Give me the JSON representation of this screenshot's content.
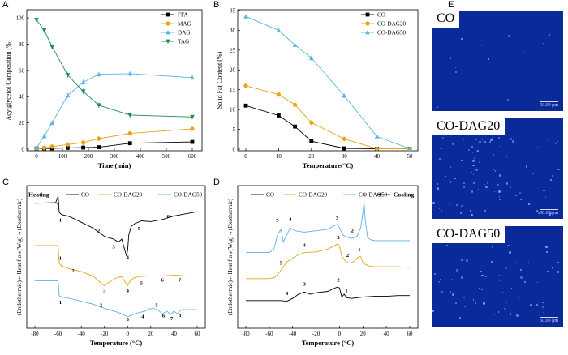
{
  "panel_letters": [
    "A",
    "B",
    "C",
    "D",
    "E"
  ],
  "colors": {
    "co": "#000000",
    "dag20": "#e8a317",
    "dag50": "#5ab4e0",
    "tag": "#1e8b5a",
    "micro_bg": "#0a2a9a"
  },
  "chart_data": [
    {
      "id": "A",
      "type": "line",
      "xlabel": "Time (min)",
      "ylabel": "Acylglycerol Composition (%)",
      "xlim": [
        0,
        600
      ],
      "ylim": [
        0,
        105
      ],
      "xticks": [
        0,
        100,
        200,
        300,
        400,
        500,
        600
      ],
      "yticks": [
        0,
        20,
        40,
        60,
        80,
        100
      ],
      "legend": "right",
      "series": [
        {
          "name": "FFA",
          "color": "#000000",
          "marker": "square",
          "x": [
            0,
            30,
            60,
            120,
            180,
            240,
            360,
            600
          ],
          "values": [
            0.5,
            0.5,
            0.6,
            1.0,
            1.2,
            1.5,
            4.5,
            5.5
          ]
        },
        {
          "name": "MAG",
          "color": "#e8a317",
          "marker": "circle",
          "x": [
            0,
            30,
            60,
            120,
            180,
            240,
            360,
            600
          ],
          "values": [
            0.5,
            1.0,
            2.0,
            3.5,
            5.0,
            8.0,
            12.0,
            15.5
          ]
        },
        {
          "name": "DAG",
          "color": "#5ab4e0",
          "marker": "triangle",
          "x": [
            0,
            30,
            60,
            120,
            180,
            240,
            360,
            600
          ],
          "values": [
            1.0,
            10.0,
            20.0,
            41.0,
            51.0,
            57.0,
            57.5,
            54.5
          ]
        },
        {
          "name": "TAG",
          "color": "#1e8b5a",
          "marker": "triangle-down",
          "x": [
            0,
            30,
            60,
            120,
            180,
            240,
            360,
            600
          ],
          "values": [
            98.5,
            90.5,
            78.0,
            56.5,
            44.0,
            33.5,
            26.0,
            24.5
          ]
        }
      ]
    },
    {
      "id": "B",
      "type": "line",
      "xlabel": "Temperature(°C)",
      "ylabel": "Solid Fat Content (%)",
      "xlim": [
        0,
        50
      ],
      "ylim": [
        0,
        35
      ],
      "xticks": [
        0,
        10,
        20,
        30,
        40,
        50
      ],
      "yticks": [
        0,
        5,
        10,
        15,
        20,
        25,
        30,
        35
      ],
      "legend": "top-right",
      "series": [
        {
          "name": "CO",
          "color": "#000000",
          "marker": "square",
          "x": [
            0,
            10,
            15,
            20,
            30,
            40,
            50
          ],
          "values": [
            11.0,
            8.5,
            5.7,
            2.0,
            0.2,
            0.1,
            0.1
          ]
        },
        {
          "name": "CO-DAG20",
          "color": "#e8a317",
          "marker": "circle",
          "x": [
            0,
            10,
            15,
            20,
            30,
            40,
            50
          ],
          "values": [
            16.0,
            13.8,
            11.2,
            6.7,
            2.6,
            0.1,
            0.1
          ]
        },
        {
          "name": "CO-DAG50",
          "color": "#5ab4e0",
          "marker": "triangle",
          "x": [
            0,
            10,
            15,
            20,
            30,
            40,
            50
          ],
          "values": [
            33.5,
            30.0,
            26.3,
            23.0,
            13.5,
            3.2,
            0.1
          ]
        }
      ]
    },
    {
      "id": "C",
      "type": "line",
      "title": "Heating",
      "xlabel": "Temperature (°C)",
      "ylabel": "(Endothermic)←Heat flow(W/g)→(Exothermic)",
      "xlim": [
        -80,
        60
      ],
      "ylim": [
        0,
        2
      ],
      "xticks": [
        -80,
        -60,
        -40,
        -20,
        0,
        20,
        40,
        60
      ],
      "yticks": [],
      "legend": "top",
      "series": [
        {
          "name": "CO",
          "color": "#000000",
          "x": [
            -80,
            -62,
            -60,
            -59,
            -57,
            -50,
            -40,
            -30,
            -20,
            -12,
            -8,
            -5,
            -3,
            -1,
            0,
            1,
            3,
            6,
            12,
            20,
            30,
            40,
            50,
            60
          ],
          "values": [
            1.75,
            1.76,
            1.85,
            1.62,
            1.59,
            1.56,
            1.48,
            1.4,
            1.28,
            1.24,
            1.2,
            1.24,
            1.12,
            1.0,
            1.08,
            1.3,
            1.42,
            1.46,
            1.5,
            1.49,
            1.52,
            1.57,
            1.6,
            1.63
          ]
        },
        {
          "name": "CO-DAG20",
          "color": "#e8a317",
          "x": [
            -80,
            -62,
            -60,
            -59,
            -57,
            -50,
            -40,
            -30,
            -23,
            -20,
            -17,
            -10,
            -5,
            -2,
            0,
            2,
            5,
            10,
            20,
            30,
            40,
            50,
            60
          ],
          "values": [
            1.15,
            1.15,
            1.15,
            0.9,
            0.86,
            0.82,
            0.78,
            0.72,
            0.62,
            0.58,
            0.62,
            0.69,
            0.71,
            0.63,
            0.58,
            0.64,
            0.69,
            0.71,
            0.72,
            0.72,
            0.73,
            0.72,
            0.72
          ]
        },
        {
          "name": "CO-DAG50",
          "color": "#5ab4e0",
          "x": [
            -80,
            -62,
            -60,
            -59,
            -57,
            -50,
            -40,
            -30,
            -20,
            -10,
            -5,
            0,
            3,
            6,
            10,
            15,
            18,
            22,
            26,
            30,
            34,
            37,
            40,
            43,
            46,
            50,
            60
          ],
          "values": [
            0.65,
            0.65,
            0.65,
            0.44,
            0.42,
            0.4,
            0.36,
            0.32,
            0.26,
            0.21,
            0.18,
            0.14,
            0.16,
            0.18,
            0.2,
            0.22,
            0.25,
            0.26,
            0.24,
            0.18,
            0.22,
            0.17,
            0.22,
            0.18,
            0.24,
            0.24,
            0.24
          ]
        }
      ],
      "annotations": [
        {
          "series": "CO",
          "labels": [
            {
              "x": -58,
              "y": 1.49,
              "text": "1"
            },
            {
              "x": -25,
              "y": 1.34,
              "text": "2"
            },
            {
              "x": -12,
              "y": 1.11,
              "text": "3"
            },
            {
              "x": 0,
              "y": 0.96,
              "text": "4"
            },
            {
              "x": 10,
              "y": 1.37,
              "text": "5"
            },
            {
              "x": 35,
              "y": 1.54,
              "text": "6"
            }
          ]
        },
        {
          "series": "CO-DAG20",
          "labels": [
            {
              "x": -58,
              "y": 0.95,
              "text": "1"
            },
            {
              "x": -47,
              "y": 0.77,
              "text": "2"
            },
            {
              "x": -20,
              "y": 0.49,
              "text": "3"
            },
            {
              "x": 0,
              "y": 0.49,
              "text": "4"
            },
            {
              "x": 12,
              "y": 0.59,
              "text": "5"
            },
            {
              "x": 30,
              "y": 0.64,
              "text": "6"
            },
            {
              "x": 45,
              "y": 0.64,
              "text": "7"
            }
          ]
        },
        {
          "series": "CO-DAG50",
          "labels": [
            {
              "x": -58,
              "y": 0.32,
              "text": "1"
            },
            {
              "x": -23,
              "y": 0.28,
              "text": "2"
            },
            {
              "x": 0,
              "y": 0.08,
              "text": "3"
            },
            {
              "x": 13,
              "y": 0.12,
              "text": "4"
            },
            {
              "x": 25,
              "y": 0.28,
              "text": "5"
            },
            {
              "x": 31,
              "y": 0.13,
              "text": "6"
            },
            {
              "x": 38,
              "y": 0.09,
              "text": "7"
            },
            {
              "x": 45,
              "y": 0.14,
              "text": "8"
            }
          ]
        }
      ]
    },
    {
      "id": "D",
      "type": "line",
      "title": "Cooling",
      "xlabel": "Temperature (°C)",
      "ylabel": "(Endothermic)←Heat flow(W/g)→(Exothermic)",
      "xlim": [
        -80,
        60
      ],
      "ylim": [
        0,
        2
      ],
      "xticks": [
        -80,
        -60,
        -40,
        -20,
        0,
        20,
        40,
        60
      ],
      "yticks": [],
      "legend": "top",
      "series": [
        {
          "name": "CO",
          "color": "#000000",
          "x": [
            -80,
            -60,
            -50,
            -45,
            -40,
            -35,
            -30,
            -25,
            -20,
            -10,
            -5,
            -2,
            0,
            2,
            4,
            6,
            10,
            20,
            30,
            40,
            50,
            60
          ],
          "values": [
            0.37,
            0.37,
            0.37,
            0.36,
            0.4,
            0.46,
            0.49,
            0.46,
            0.48,
            0.5,
            0.54,
            0.56,
            0.55,
            0.42,
            0.46,
            0.41,
            0.4,
            0.42,
            0.43,
            0.43,
            0.44,
            0.44
          ]
        },
        {
          "name": "CO-DAG20",
          "color": "#e8a317",
          "x": [
            -80,
            -60,
            -55,
            -50,
            -45,
            -40,
            -35,
            -30,
            -20,
            -10,
            -5,
            -2,
            0,
            2,
            5,
            8,
            12,
            15,
            18,
            20,
            25,
            30,
            40,
            50,
            60
          ],
          "values": [
            0.68,
            0.68,
            0.7,
            0.8,
            0.92,
            0.97,
            1.02,
            1.05,
            1.06,
            1.1,
            1.14,
            1.17,
            1.14,
            1.0,
            0.93,
            0.9,
            0.92,
            0.97,
            1.0,
            0.9,
            0.86,
            0.85,
            0.85,
            0.85,
            0.84
          ]
        },
        {
          "name": "CO-DAG50",
          "color": "#5ab4e0",
          "x": [
            -80,
            -60,
            -56,
            -53,
            -50,
            -48,
            -45,
            -42,
            -38,
            -30,
            -20,
            -10,
            -5,
            -2,
            0,
            3,
            6,
            10,
            15,
            18,
            20,
            21,
            22,
            24,
            27,
            30,
            40,
            50,
            60
          ],
          "values": [
            1.05,
            1.05,
            1.1,
            1.3,
            1.38,
            1.2,
            1.3,
            1.4,
            1.36,
            1.34,
            1.36,
            1.38,
            1.43,
            1.45,
            1.4,
            1.3,
            1.27,
            1.25,
            1.28,
            1.4,
            1.62,
            1.76,
            1.5,
            1.26,
            1.23,
            1.22,
            1.22,
            1.22,
            1.22
          ]
        }
      ],
      "annotations": [
        {
          "series": "CO",
          "labels": [
            {
              "x": -45,
              "y": 0.45,
              "text": "4"
            },
            {
              "x": -30,
              "y": 0.58,
              "text": "3"
            },
            {
              "x": -1,
              "y": 0.64,
              "text": "2"
            },
            {
              "x": 6,
              "y": 0.49,
              "text": "1"
            }
          ]
        },
        {
          "series": "CO-DAG20",
          "labels": [
            {
              "x": -50,
              "y": 0.88,
              "text": "5"
            },
            {
              "x": -30,
              "y": 1.13,
              "text": "4"
            },
            {
              "x": -1,
              "y": 1.24,
              "text": "3"
            },
            {
              "x": 7,
              "y": 0.99,
              "text": "2"
            },
            {
              "x": 17,
              "y": 1.07,
              "text": "1"
            }
          ]
        },
        {
          "series": "CO-DAG50",
          "labels": [
            {
              "x": -53,
              "y": 1.48,
              "text": "5"
            },
            {
              "x": -42,
              "y": 1.5,
              "text": "4"
            },
            {
              "x": -2,
              "y": 1.52,
              "text": "3"
            },
            {
              "x": 11,
              "y": 1.34,
              "text": "2"
            },
            {
              "x": 21,
              "y": 1.85,
              "text": "1"
            }
          ]
        }
      ]
    }
  ],
  "micrographs": [
    {
      "label": "CO",
      "scale": "50.00 μm"
    },
    {
      "label": "CO-DAG20",
      "scale": "50.00 μm"
    },
    {
      "label": "CO-DAG50",
      "scale": "50.00 μm"
    }
  ]
}
